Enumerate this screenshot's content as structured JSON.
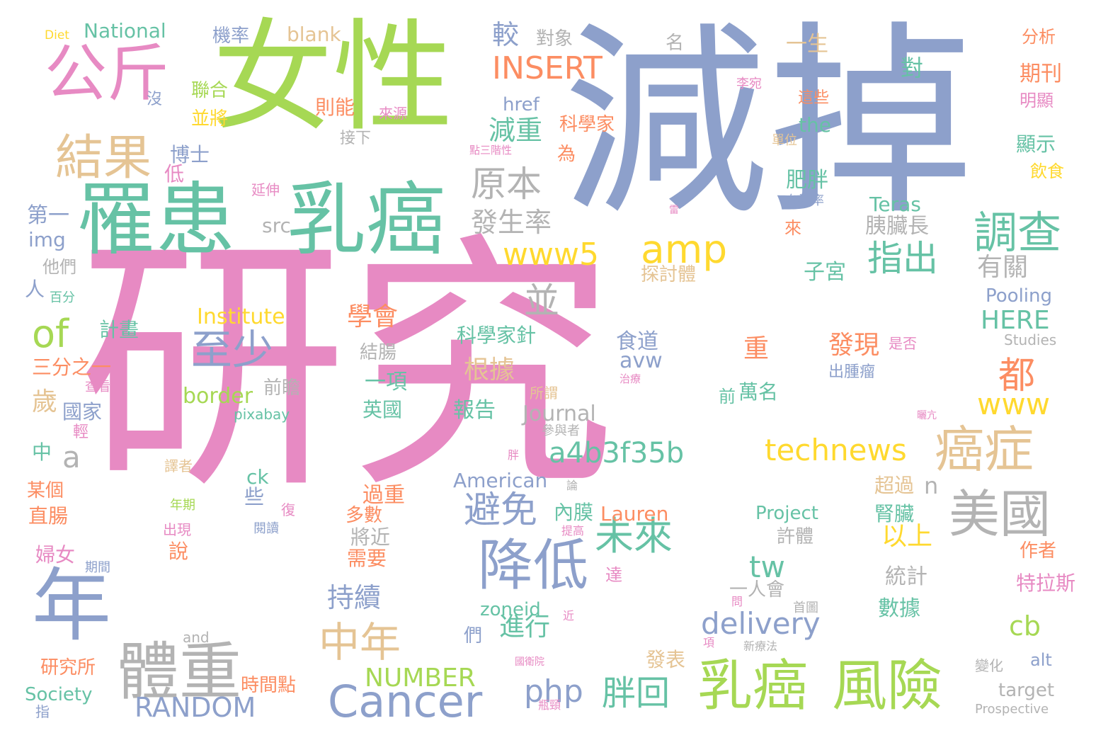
{
  "palette": {
    "pink": "#e78ac3",
    "blue": "#8da0cb",
    "green": "#a6d854",
    "teal": "#66c2a5",
    "tan": "#e5c494",
    "orange": "#fc8d62",
    "yellow": "#ffd92f",
    "gray": "#b3b3b3"
  },
  "words": [
    {
      "text": "研究",
      "c": "pink"
    },
    {
      "text": "減掉",
      "c": "blue"
    },
    {
      "text": "女性",
      "c": "green"
    },
    {
      "text": "罹患",
      "c": "teal"
    },
    {
      "text": "乳癌",
      "c": "teal"
    },
    {
      "text": "公斤",
      "c": "pink"
    },
    {
      "text": "年",
      "c": "blue"
    },
    {
      "text": "結果",
      "c": "tan"
    },
    {
      "text": "體重",
      "c": "gray"
    },
    {
      "text": "乳癌",
      "c": "green"
    },
    {
      "text": "風險",
      "c": "green"
    },
    {
      "text": "Cancer",
      "c": "blue"
    },
    {
      "text": "降低",
      "c": "blue"
    },
    {
      "text": "美國",
      "c": "gray"
    },
    {
      "text": "癌症",
      "c": "tan"
    },
    {
      "text": "調查",
      "c": "teal"
    },
    {
      "text": "amp",
      "c": "yellow"
    },
    {
      "text": "至少",
      "c": "blue"
    },
    {
      "text": "中年",
      "c": "tan"
    },
    {
      "text": "未來",
      "c": "teal"
    },
    {
      "text": "避免",
      "c": "blue"
    },
    {
      "text": "指出",
      "c": "teal"
    },
    {
      "text": "原本",
      "c": "gray"
    },
    {
      "text": "www5",
      "c": "yellow"
    },
    {
      "text": "of",
      "c": "green"
    },
    {
      "text": "technews",
      "c": "yellow"
    },
    {
      "text": "a4b3f35b",
      "c": "teal"
    },
    {
      "text": "delivery",
      "c": "blue"
    },
    {
      "text": "www",
      "c": "yellow"
    },
    {
      "text": "都",
      "c": "orange"
    },
    {
      "text": "胖回",
      "c": "teal"
    },
    {
      "text": "RANDOM",
      "c": "blue"
    },
    {
      "text": "php",
      "c": "blue"
    },
    {
      "text": "INSERT",
      "c": "orange"
    },
    {
      "text": "並",
      "c": "gray"
    },
    {
      "text": "a",
      "c": "gray"
    },
    {
      "text": "發生率",
      "c": "gray"
    },
    {
      "text": "減重",
      "c": "teal"
    },
    {
      "text": "較",
      "c": "blue"
    },
    {
      "text": "tw",
      "c": "teal"
    },
    {
      "text": "持續",
      "c": "blue"
    },
    {
      "text": "進行",
      "c": "teal"
    },
    {
      "text": "根據",
      "c": "tan"
    },
    {
      "text": "學會",
      "c": "orange"
    },
    {
      "text": "發現",
      "c": "orange"
    },
    {
      "text": "以上",
      "c": "yellow"
    },
    {
      "text": "有關",
      "c": "gray"
    },
    {
      "text": "HERE",
      "c": "teal"
    },
    {
      "text": "cb",
      "c": "green"
    },
    {
      "text": "NUMBER",
      "c": "green"
    },
    {
      "text": "重",
      "c": "orange"
    },
    {
      "text": "歲",
      "c": "tan"
    },
    {
      "text": "n",
      "c": "gray"
    },
    {
      "text": "National",
      "c": "teal"
    },
    {
      "text": "blank",
      "c": "tan"
    },
    {
      "text": "Diet",
      "c": "yellow"
    },
    {
      "text": "機率",
      "c": "blue"
    },
    {
      "text": "對象",
      "c": "gray"
    },
    {
      "text": "名",
      "c": "gray"
    },
    {
      "text": "一生",
      "c": "tan"
    },
    {
      "text": "分析",
      "c": "orange"
    },
    {
      "text": "對",
      "c": "teal"
    },
    {
      "text": "期刊",
      "c": "orange"
    },
    {
      "text": "明顯",
      "c": "pink"
    },
    {
      "text": "href",
      "c": "blue"
    },
    {
      "text": "則能",
      "c": "orange"
    },
    {
      "text": "來源",
      "c": "pink"
    },
    {
      "text": "李宛",
      "c": "pink"
    },
    {
      "text": "這些",
      "c": "orange"
    },
    {
      "text": "聯合",
      "c": "green"
    },
    {
      "text": "沒",
      "c": "blue"
    },
    {
      "text": "並將",
      "c": "yellow"
    },
    {
      "text": "科學家",
      "c": "orange"
    },
    {
      "text": "the",
      "c": "teal"
    },
    {
      "text": "接下",
      "c": "gray"
    },
    {
      "text": "顯示",
      "c": "teal"
    },
    {
      "text": "單位",
      "c": "tan"
    },
    {
      "text": "博士",
      "c": "blue"
    },
    {
      "text": "點三階性",
      "c": "pink"
    },
    {
      "text": "為",
      "c": "orange"
    },
    {
      "text": "飲食",
      "c": "yellow"
    },
    {
      "text": "低",
      "c": "pink"
    },
    {
      "text": "肥胖",
      "c": "teal"
    },
    {
      "text": "延伸",
      "c": "pink"
    },
    {
      "text": "Teras",
      "c": "teal"
    },
    {
      "text": "存活率",
      "c": "blue"
    },
    {
      "text": "第一",
      "c": "blue"
    },
    {
      "text": "雷",
      "c": "pink"
    },
    {
      "text": "src",
      "c": "gray"
    },
    {
      "text": "胰臟長",
      "c": "gray"
    },
    {
      "text": "來",
      "c": "orange"
    },
    {
      "text": "img",
      "c": "blue"
    },
    {
      "text": "子宮",
      "c": "teal"
    },
    {
      "text": "他們",
      "c": "gray"
    },
    {
      "text": "探討體",
      "c": "tan"
    },
    {
      "text": "人",
      "c": "blue"
    },
    {
      "text": "百分",
      "c": "teal"
    },
    {
      "text": "Pooling",
      "c": "blue"
    },
    {
      "text": "Institute",
      "c": "yellow"
    },
    {
      "text": "計畫",
      "c": "teal"
    },
    {
      "text": "科學家針",
      "c": "teal"
    },
    {
      "text": "食道",
      "c": "blue"
    },
    {
      "text": "結腸",
      "c": "gray"
    },
    {
      "text": "是否",
      "c": "pink"
    },
    {
      "text": "Studies",
      "c": "gray"
    },
    {
      "text": "三分之一",
      "c": "orange"
    },
    {
      "text": "avw",
      "c": "blue"
    },
    {
      "text": "治療",
      "c": "pink"
    },
    {
      "text": "一項",
      "c": "teal"
    },
    {
      "text": "出腫瘤",
      "c": "blue"
    },
    {
      "text": "查看",
      "c": "pink"
    },
    {
      "text": "前瞻",
      "c": "gray"
    },
    {
      "text": "border",
      "c": "green"
    },
    {
      "text": "所謂",
      "c": "tan"
    },
    {
      "text": "前",
      "c": "teal"
    },
    {
      "text": "萬名",
      "c": "teal"
    },
    {
      "text": "國家",
      "c": "blue"
    },
    {
      "text": "英國",
      "c": "teal"
    },
    {
      "text": "報告",
      "c": "teal"
    },
    {
      "text": "pixabay",
      "c": "teal"
    },
    {
      "text": "Journal",
      "c": "gray"
    },
    {
      "text": "曬亢",
      "c": "pink"
    },
    {
      "text": "參與者",
      "c": "gray"
    },
    {
      "text": "輕",
      "c": "pink"
    },
    {
      "text": "中",
      "c": "teal"
    },
    {
      "text": "胖",
      "c": "pink"
    },
    {
      "text": "譯者",
      "c": "tan"
    },
    {
      "text": "ck",
      "c": "teal"
    },
    {
      "text": "American",
      "c": "blue"
    },
    {
      "text": "論",
      "c": "gray"
    },
    {
      "text": "超過",
      "c": "tan"
    },
    {
      "text": "某個",
      "c": "orange"
    },
    {
      "text": "些",
      "c": "blue"
    },
    {
      "text": "過重",
      "c": "orange"
    },
    {
      "text": "年期",
      "c": "green"
    },
    {
      "text": "內膜",
      "c": "teal"
    },
    {
      "text": "Lauren",
      "c": "orange"
    },
    {
      "text": "腎臟",
      "c": "teal"
    },
    {
      "text": "直腸",
      "c": "orange"
    },
    {
      "text": "多數",
      "c": "orange"
    },
    {
      "text": "復",
      "c": "pink"
    },
    {
      "text": "出現",
      "c": "pink"
    },
    {
      "text": "提高",
      "c": "pink"
    },
    {
      "text": "Project",
      "c": "teal"
    },
    {
      "text": "閱讀",
      "c": "blue"
    },
    {
      "text": "將近",
      "c": "gray"
    },
    {
      "text": "許體",
      "c": "gray"
    },
    {
      "text": "作者",
      "c": "orange"
    },
    {
      "text": "婦女",
      "c": "pink"
    },
    {
      "text": "說",
      "c": "orange"
    },
    {
      "text": "需要",
      "c": "orange"
    },
    {
      "text": "期間",
      "c": "blue"
    },
    {
      "text": "達",
      "c": "pink"
    },
    {
      "text": "統計",
      "c": "gray"
    },
    {
      "text": "特拉斯",
      "c": "pink"
    },
    {
      "text": "一人會",
      "c": "gray"
    },
    {
      "text": "問",
      "c": "pink"
    },
    {
      "text": "首圖",
      "c": "gray"
    },
    {
      "text": "zoneid",
      "c": "teal"
    },
    {
      "text": "數據",
      "c": "teal"
    },
    {
      "text": "們",
      "c": "blue"
    },
    {
      "text": "近",
      "c": "pink"
    },
    {
      "text": "and",
      "c": "gray"
    },
    {
      "text": "項",
      "c": "pink"
    },
    {
      "text": "新療法",
      "c": "gray"
    },
    {
      "text": "發表",
      "c": "tan"
    },
    {
      "text": "研究所",
      "c": "orange"
    },
    {
      "text": "國衛院",
      "c": "pink"
    },
    {
      "text": "alt",
      "c": "blue"
    },
    {
      "text": "變化",
      "c": "gray"
    },
    {
      "text": "時間點",
      "c": "orange"
    },
    {
      "text": "Society",
      "c": "teal"
    },
    {
      "text": "瓶頸",
      "c": "pink"
    },
    {
      "text": "target",
      "c": "gray"
    },
    {
      "text": "指",
      "c": "blue"
    },
    {
      "text": "Prospective",
      "c": "gray"
    }
  ]
}
